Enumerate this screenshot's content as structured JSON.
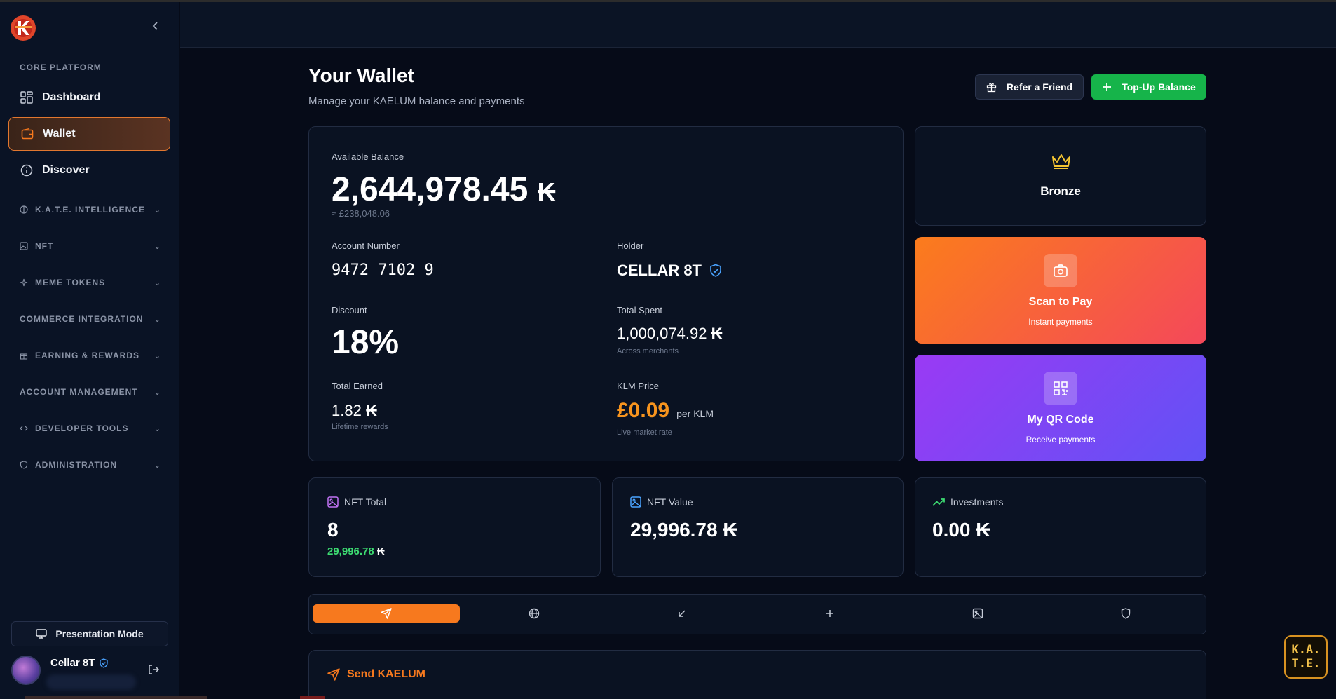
{
  "sidebar": {
    "core_label": "CORE PLATFORM",
    "nav": [
      {
        "label": "Dashboard"
      },
      {
        "label": "Wallet"
      },
      {
        "label": "Discover"
      }
    ],
    "groups": [
      {
        "label": "K.A.T.E. INTELLIGENCE"
      },
      {
        "label": "NFT"
      },
      {
        "label": "MEME TOKENS"
      },
      {
        "label": "COMMERCE INTEGRATION"
      },
      {
        "label": "EARNING & REWARDS"
      },
      {
        "label": "ACCOUNT MANAGEMENT"
      },
      {
        "label": "DEVELOPER TOOLS"
      },
      {
        "label": "ADMINISTRATION"
      }
    ],
    "presentation_label": "Presentation Mode",
    "user_name": "Cellar 8T"
  },
  "header": {
    "title": "Your Wallet",
    "subtitle": "Manage your KAELUM balance and payments",
    "refer_label": "Refer a Friend",
    "topup_label": "Top-Up Balance"
  },
  "currency_symbol": "₭",
  "balance": {
    "label": "Available Balance",
    "value": "2,644,978.45",
    "gbp": "≈ £238,048.06",
    "account_label": "Account Number",
    "account_number": "9472 7102 9",
    "holder_label": "Holder",
    "holder": "CELLAR 8T",
    "discount_label": "Discount",
    "discount": "18%",
    "spent_label": "Total Spent",
    "spent": "1,000,074.92",
    "spent_sub": "Across merchants",
    "earned_label": "Total Earned",
    "earned": "1.82",
    "earned_sub": "Lifetime rewards",
    "price_label": "KLM Price",
    "price": "£0.09",
    "price_unit": "per KLM",
    "price_sub": "Live market rate"
  },
  "tier": {
    "label": "Bronze"
  },
  "actions": {
    "scan_title": "Scan to Pay",
    "scan_sub": "Instant payments",
    "qr_title": "My QR Code",
    "qr_sub": "Receive payments"
  },
  "stats": {
    "nft_total_label": "NFT Total",
    "nft_total": "8",
    "nft_total_sub": "29,996.78",
    "nft_value_label": "NFT Value",
    "nft_value": "29,996.78",
    "investments_label": "Investments",
    "investments": "0.00"
  },
  "send": {
    "title": "Send KAELUM"
  },
  "kate_badge": {
    "line1": "K.A.",
    "line2": "T.E."
  },
  "colors": {
    "accent": "#f7791e",
    "green": "#16b44a",
    "price": "#f7941e",
    "nft_green": "#3ddc72"
  }
}
